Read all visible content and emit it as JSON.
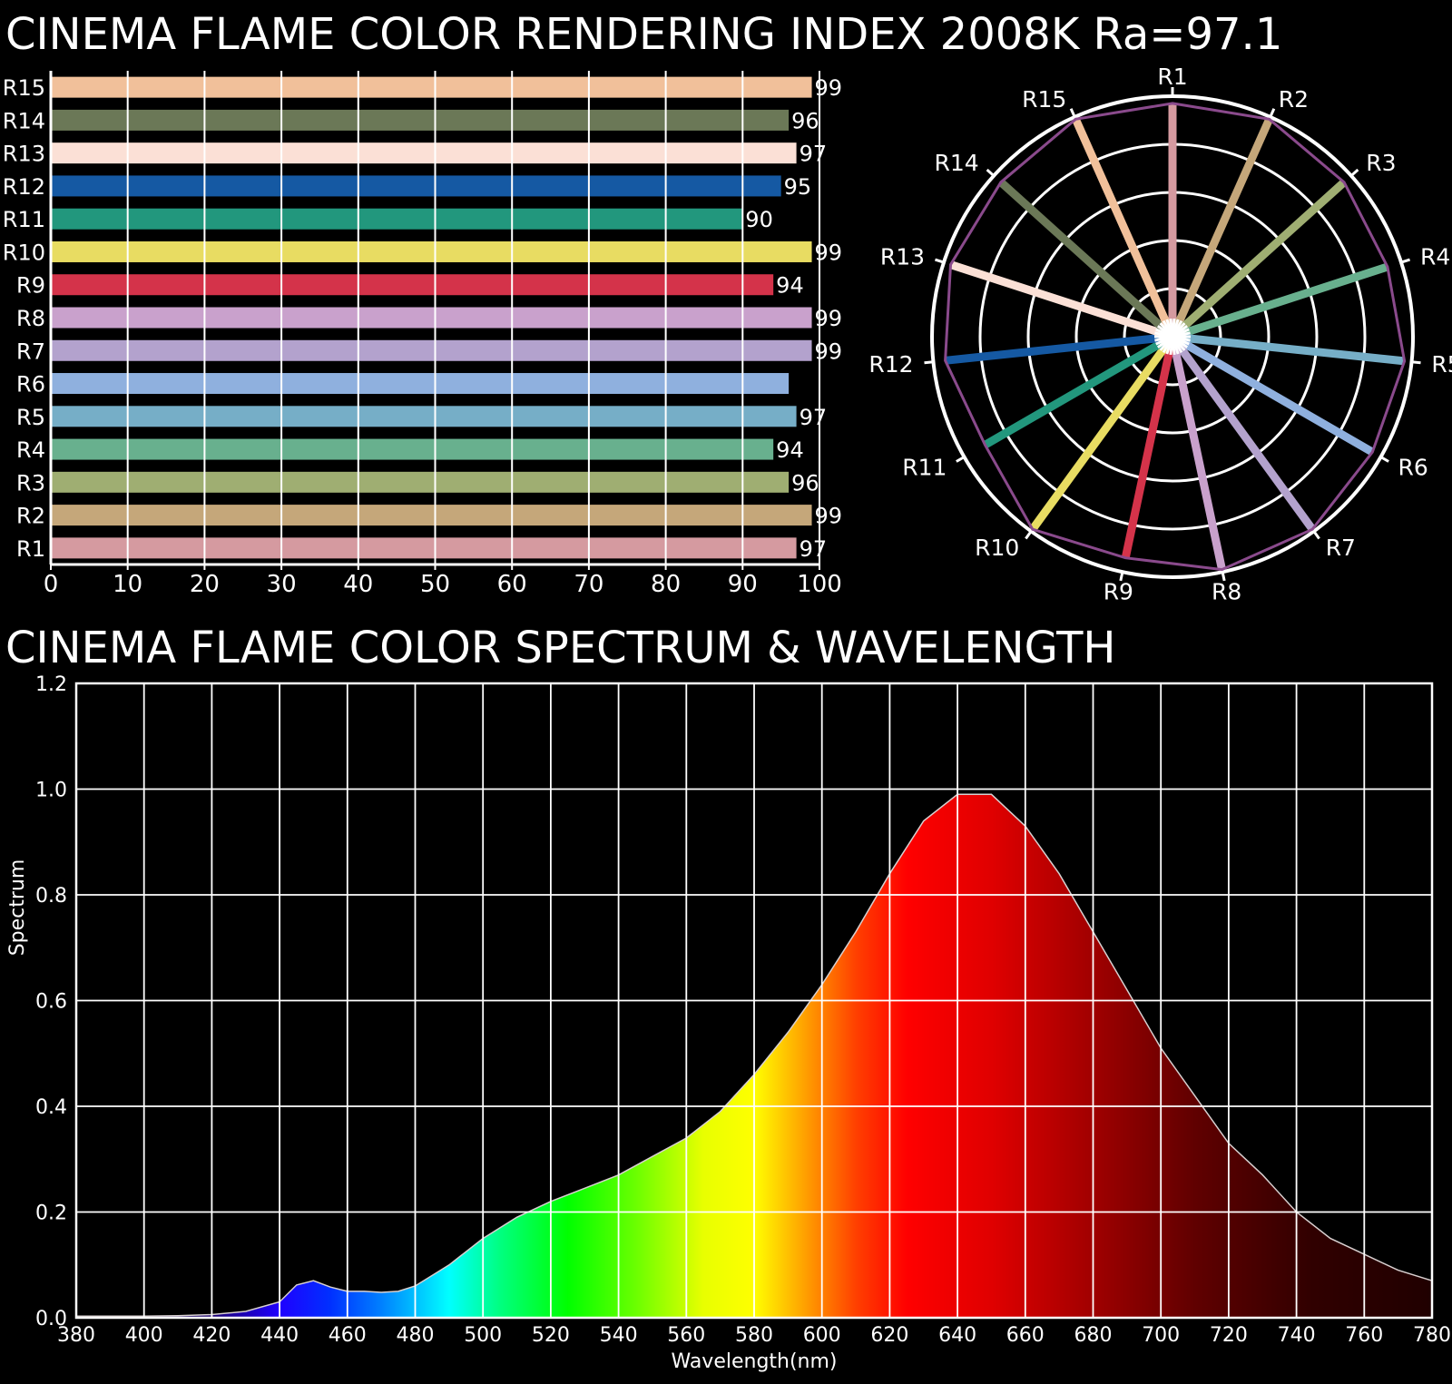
{
  "titles": {
    "cri": "CINEMA FLAME COLOR RENDERING INDEX 2008K  Ra=97.1",
    "spectrum": "CINEMA FLAME COLOR SPECTRUM & WAVELENGTH"
  },
  "chart_data": [
    {
      "type": "bar",
      "orientation": "horizontal",
      "categories": [
        "R1",
        "R2",
        "R3",
        "R4",
        "R5",
        "R6",
        "R7",
        "R8",
        "R9",
        "R10",
        "R11",
        "R12",
        "R13",
        "R14",
        "R15"
      ],
      "values": [
        97,
        99,
        96,
        94,
        97,
        96,
        99,
        99,
        94,
        99,
        90,
        95,
        97,
        96,
        99
      ],
      "value_labels": [
        "97",
        "99",
        "96",
        "94",
        "97",
        "",
        "99",
        "99",
        "94",
        "99",
        "90",
        "95",
        "97",
        "96",
        "99"
      ],
      "colors": [
        "#d59aa0",
        "#c5a77a",
        "#9fae72",
        "#68b08e",
        "#76aec7",
        "#8fb0de",
        "#b3a2cd",
        "#c9a1cc",
        "#d4334a",
        "#e8dc62",
        "#22977d",
        "#1559a3",
        "#fbe0d6",
        "#6b7857",
        "#f1c09a"
      ],
      "xlim": [
        0,
        100
      ],
      "xticks": [
        0,
        10,
        20,
        30,
        40,
        50,
        60,
        70,
        80,
        90,
        100
      ],
      "grid": true
    },
    {
      "type": "radar",
      "categories": [
        "R1",
        "R2",
        "R3",
        "R4",
        "R5",
        "R6",
        "R7",
        "R8",
        "R9",
        "R10",
        "R11",
        "R12",
        "R13",
        "R14",
        "R15"
      ],
      "values": [
        97,
        99,
        96,
        94,
        97,
        96,
        99,
        99,
        94,
        99,
        90,
        95,
        97,
        96,
        99
      ],
      "colors": [
        "#d59aa0",
        "#c5a77a",
        "#9fae72",
        "#68b08e",
        "#76aec7",
        "#8fb0de",
        "#b3a2cd",
        "#c9a1cc",
        "#d4334a",
        "#e8dc62",
        "#22977d",
        "#1559a3",
        "#fbe0d6",
        "#6b7857",
        "#f1c09a"
      ],
      "outline_color": "#8a4a8c",
      "rlim": [
        0,
        100
      ],
      "rings": 5
    },
    {
      "type": "area",
      "xlabel": "Wavelength(nm)",
      "ylabel": "Spectrum",
      "xlim": [
        380,
        780
      ],
      "ylim": [
        0,
        1.2
      ],
      "xticks": [
        380,
        400,
        420,
        440,
        460,
        480,
        500,
        520,
        540,
        560,
        580,
        600,
        620,
        640,
        660,
        680,
        700,
        720,
        740,
        760,
        780
      ],
      "yticks": [
        "0.0",
        "0.2",
        "0.4",
        "0.6",
        "0.8",
        "1.0",
        "1.2"
      ],
      "grid": true,
      "x": [
        380,
        390,
        400,
        410,
        420,
        430,
        440,
        445,
        450,
        455,
        460,
        465,
        470,
        475,
        480,
        490,
        500,
        510,
        520,
        530,
        540,
        550,
        560,
        570,
        580,
        590,
        600,
        610,
        620,
        630,
        640,
        650,
        660,
        670,
        680,
        690,
        700,
        710,
        720,
        730,
        740,
        750,
        760,
        770,
        780
      ],
      "y": [
        0.003,
        0.003,
        0.003,
        0.004,
        0.006,
        0.012,
        0.03,
        0.062,
        0.07,
        0.058,
        0.05,
        0.05,
        0.048,
        0.05,
        0.06,
        0.1,
        0.15,
        0.19,
        0.22,
        0.245,
        0.27,
        0.305,
        0.34,
        0.39,
        0.46,
        0.54,
        0.63,
        0.73,
        0.84,
        0.94,
        0.99,
        0.99,
        0.93,
        0.84,
        0.73,
        0.62,
        0.51,
        0.42,
        0.33,
        0.27,
        0.2,
        0.15,
        0.12,
        0.09,
        0.07
      ]
    }
  ]
}
